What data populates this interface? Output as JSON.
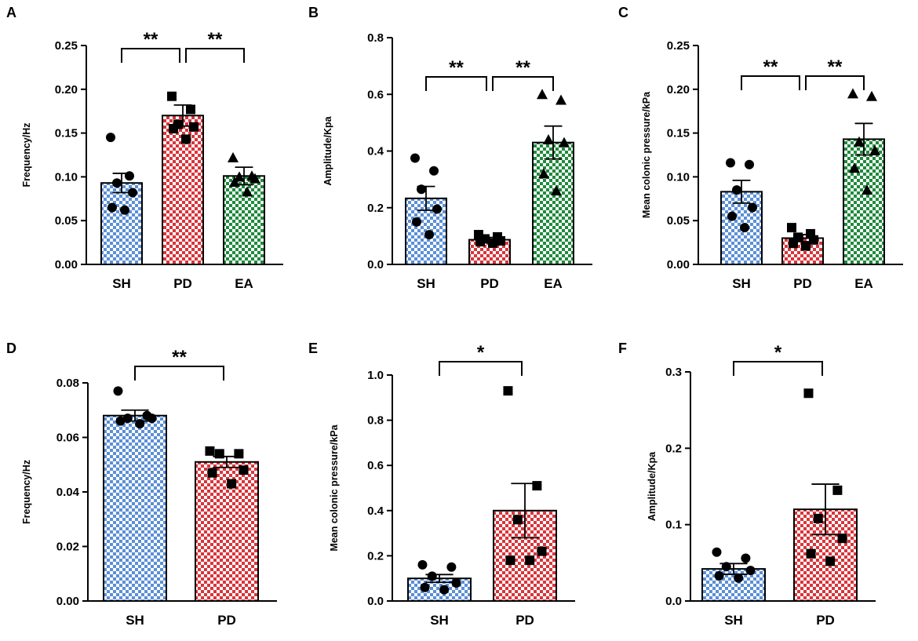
{
  "colors": {
    "SH": "#5b8fd6",
    "PD": "#d9343a",
    "EA": "#1f8a3c"
  },
  "chart_data": [
    {
      "panel": "A",
      "type": "bar",
      "ylabel": "Frequency/Hz",
      "ylim": [
        0,
        0.25
      ],
      "yticks": [
        "0.00",
        "0.05",
        "0.10",
        "0.15",
        "0.20",
        "0.25"
      ],
      "categories": [
        "SH",
        "PD",
        "EA"
      ],
      "values": [
        0.093,
        0.17,
        0.101
      ],
      "sem": [
        0.011,
        0.012,
        0.01
      ],
      "points": [
        [
          0.145,
          0.101,
          0.093,
          0.082,
          0.065,
          0.062
        ],
        [
          0.192,
          0.177,
          0.16,
          0.157,
          0.155,
          0.143
        ],
        [
          0.122,
          0.101,
          0.1,
          0.098,
          0.094,
          0.083
        ]
      ],
      "markers": [
        "circle",
        "square",
        "triangle"
      ],
      "significance": [
        {
          "from": 0,
          "to": 1,
          "label": "**"
        },
        {
          "from": 1,
          "to": 2,
          "label": "**"
        }
      ]
    },
    {
      "panel": "B",
      "type": "bar",
      "ylabel": "Amplitude/Kpa",
      "ylim": [
        0,
        0.8
      ],
      "yticks": [
        "0.0",
        "0.2",
        "0.4",
        "0.6",
        "0.8"
      ],
      "categories": [
        "SH",
        "PD",
        "EA"
      ],
      "values": [
        0.233,
        0.087,
        0.43
      ],
      "sem": [
        0.042,
        0.008,
        0.058
      ],
      "points": [
        [
          0.375,
          0.33,
          0.265,
          0.195,
          0.15,
          0.105
        ],
        [
          0.105,
          0.097,
          0.09,
          0.083,
          0.08,
          0.075
        ],
        [
          0.6,
          0.58,
          0.44,
          0.43,
          0.32,
          0.26
        ]
      ],
      "markers": [
        "circle",
        "square",
        "triangle"
      ],
      "significance": [
        {
          "from": 0,
          "to": 1,
          "label": "**"
        },
        {
          "from": 1,
          "to": 2,
          "label": "**"
        }
      ]
    },
    {
      "panel": "C",
      "type": "bar",
      "ylabel": "Mean colonic pressure/kPa",
      "ylim": [
        0,
        0.25
      ],
      "yticks": [
        "0.00",
        "0.05",
        "0.10",
        "0.15",
        "0.20",
        "0.25"
      ],
      "categories": [
        "SH",
        "PD",
        "EA"
      ],
      "values": [
        0.083,
        0.03,
        0.143
      ],
      "sem": [
        0.013,
        0.004,
        0.018
      ],
      "points": [
        [
          0.116,
          0.114,
          0.085,
          0.065,
          0.055,
          0.042
        ],
        [
          0.042,
          0.035,
          0.031,
          0.028,
          0.024,
          0.021
        ],
        [
          0.195,
          0.192,
          0.14,
          0.13,
          0.11,
          0.085
        ]
      ],
      "markers": [
        "circle",
        "square",
        "triangle"
      ],
      "significance": [
        {
          "from": 0,
          "to": 1,
          "label": "**"
        },
        {
          "from": 1,
          "to": 2,
          "label": "**"
        }
      ]
    },
    {
      "panel": "D",
      "type": "bar",
      "ylabel": "Frequency/Hz",
      "ylim": [
        0,
        0.08
      ],
      "yticks": [
        "0.00",
        "0.02",
        "0.04",
        "0.06",
        "0.08"
      ],
      "categories": [
        "SH",
        "PD"
      ],
      "values": [
        0.068,
        0.051
      ],
      "sem": [
        0.002,
        0.002
      ],
      "points": [
        [
          0.077,
          0.068,
          0.067,
          0.067,
          0.066,
          0.065
        ],
        [
          0.055,
          0.054,
          0.054,
          0.048,
          0.047,
          0.043
        ]
      ],
      "markers": [
        "circle",
        "square"
      ],
      "significance": [
        {
          "from": 0,
          "to": 1,
          "label": "**"
        }
      ]
    },
    {
      "panel": "E",
      "type": "bar",
      "ylabel": "Mean colonic pressure/kPa",
      "ylim": [
        0,
        1.0
      ],
      "yticks": [
        "0.0",
        "0.2",
        "0.4",
        "0.6",
        "0.8",
        "1.0"
      ],
      "categories": [
        "SH",
        "PD"
      ],
      "values": [
        0.1,
        0.4
      ],
      "sem": [
        0.017,
        0.12
      ],
      "points": [
        [
          0.16,
          0.15,
          0.11,
          0.08,
          0.06,
          0.05
        ],
        [
          0.93,
          0.51,
          0.36,
          0.22,
          0.18,
          0.18
        ]
      ],
      "markers": [
        "circle",
        "square"
      ],
      "significance": [
        {
          "from": 0,
          "to": 1,
          "label": "*"
        }
      ]
    },
    {
      "panel": "F",
      "type": "bar",
      "ylabel": "Amplitude/Kpa",
      "ylim": [
        0,
        0.3
      ],
      "yticks": [
        "0.0",
        "0.1",
        "0.2",
        "0.3"
      ],
      "categories": [
        "SH",
        "PD"
      ],
      "values": [
        0.042,
        0.12
      ],
      "sem": [
        0.007,
        0.033
      ],
      "points": [
        [
          0.064,
          0.056,
          0.045,
          0.04,
          0.033,
          0.03
        ],
        [
          0.272,
          0.145,
          0.108,
          0.082,
          0.062,
          0.052
        ]
      ],
      "markers": [
        "circle",
        "square"
      ],
      "significance": [
        {
          "from": 0,
          "to": 1,
          "label": "*"
        }
      ]
    }
  ]
}
